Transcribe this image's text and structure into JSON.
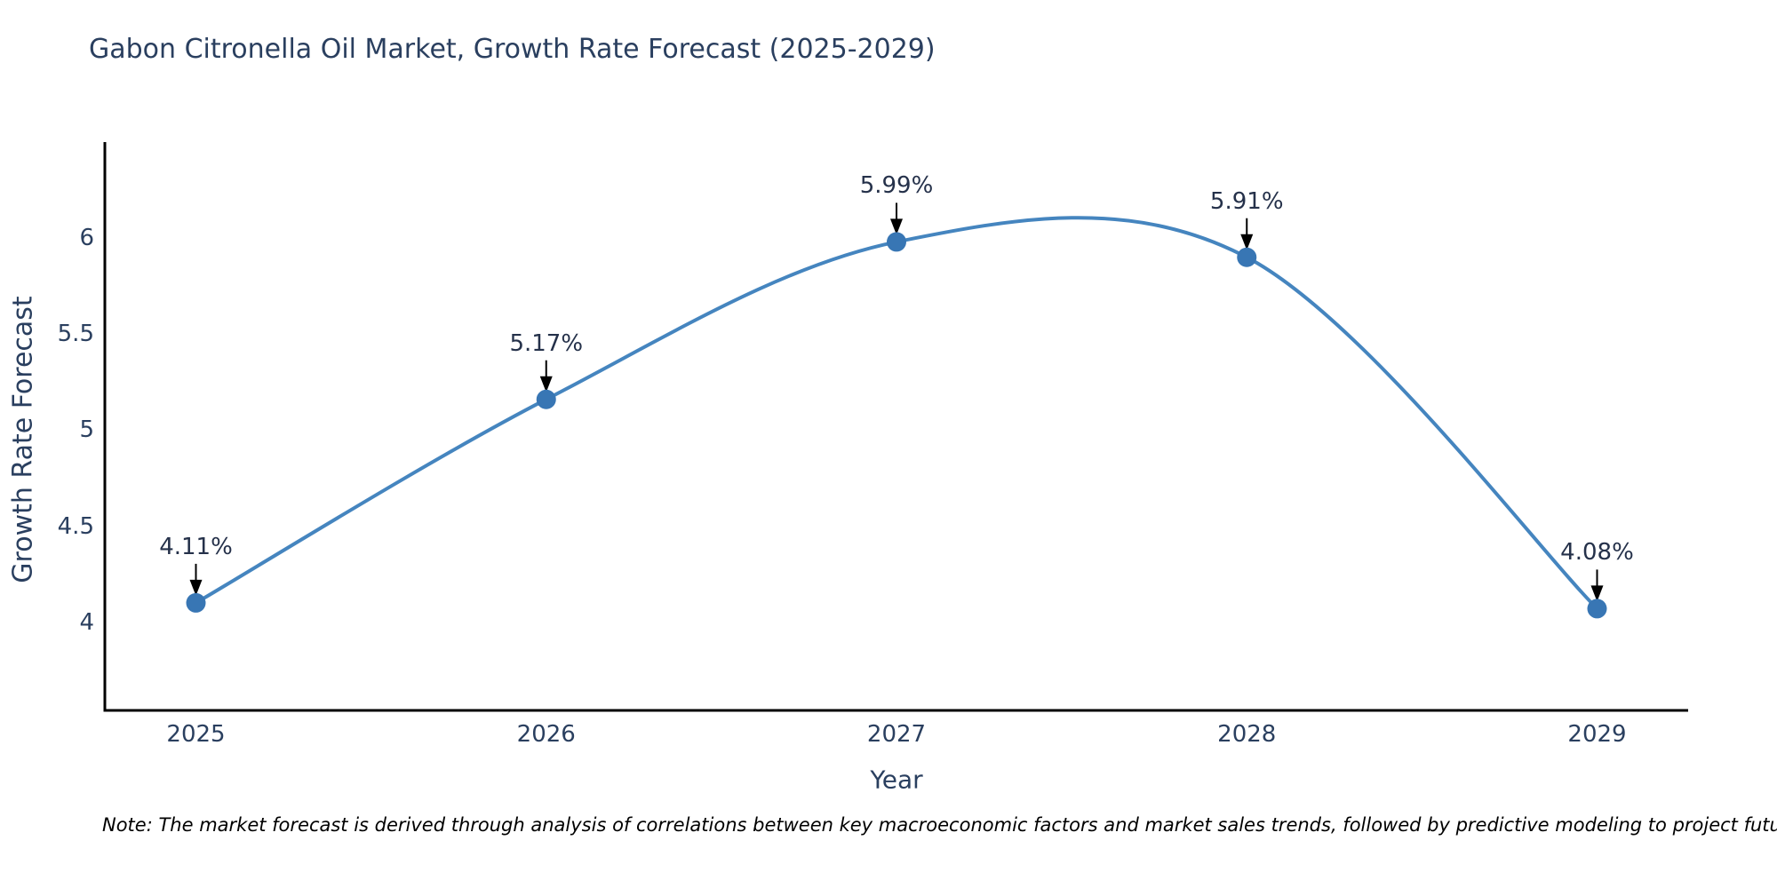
{
  "title": "Gabon Citronella Oil Market, Growth Rate Forecast (2025-2029)",
  "note": "Note: The market forecast is derived through analysis of correlations between key macroeconomic factors and market sales trends, followed by predictive modeling to project future sales",
  "chart_data": {
    "type": "line",
    "line_shape": "spline",
    "title": "Gabon Citronella Oil Market, Growth Rate Forecast (2025-2029)",
    "xlabel": "Year",
    "ylabel": "Growth Rate Forecast",
    "x": [
      2025,
      2026,
      2027,
      2028,
      2029
    ],
    "y": [
      4.11,
      5.17,
      5.99,
      5.91,
      4.08
    ],
    "point_labels": [
      "4.11%",
      "5.17%",
      "5.99%",
      "5.91%",
      "4.08%"
    ],
    "xtick_labels": [
      "2025",
      "2026",
      "2027",
      "2028",
      "2029"
    ],
    "yticks": [
      4,
      4.5,
      5,
      5.5,
      6
    ],
    "ytick_labels": [
      "4",
      "4.5",
      "5",
      "5.5",
      "6"
    ],
    "xlim": [
      2024.74,
      2029.26
    ],
    "ylim": [
      3.55,
      6.51
    ],
    "grid": false,
    "legend": false,
    "markers": true,
    "annotations_arrows": true,
    "colors": {
      "line": "#4585bf",
      "marker": "#3876b4",
      "axis": "#000000",
      "text": "#2a3f5f",
      "arrow": "#000000",
      "background": "#ffffff"
    }
  }
}
